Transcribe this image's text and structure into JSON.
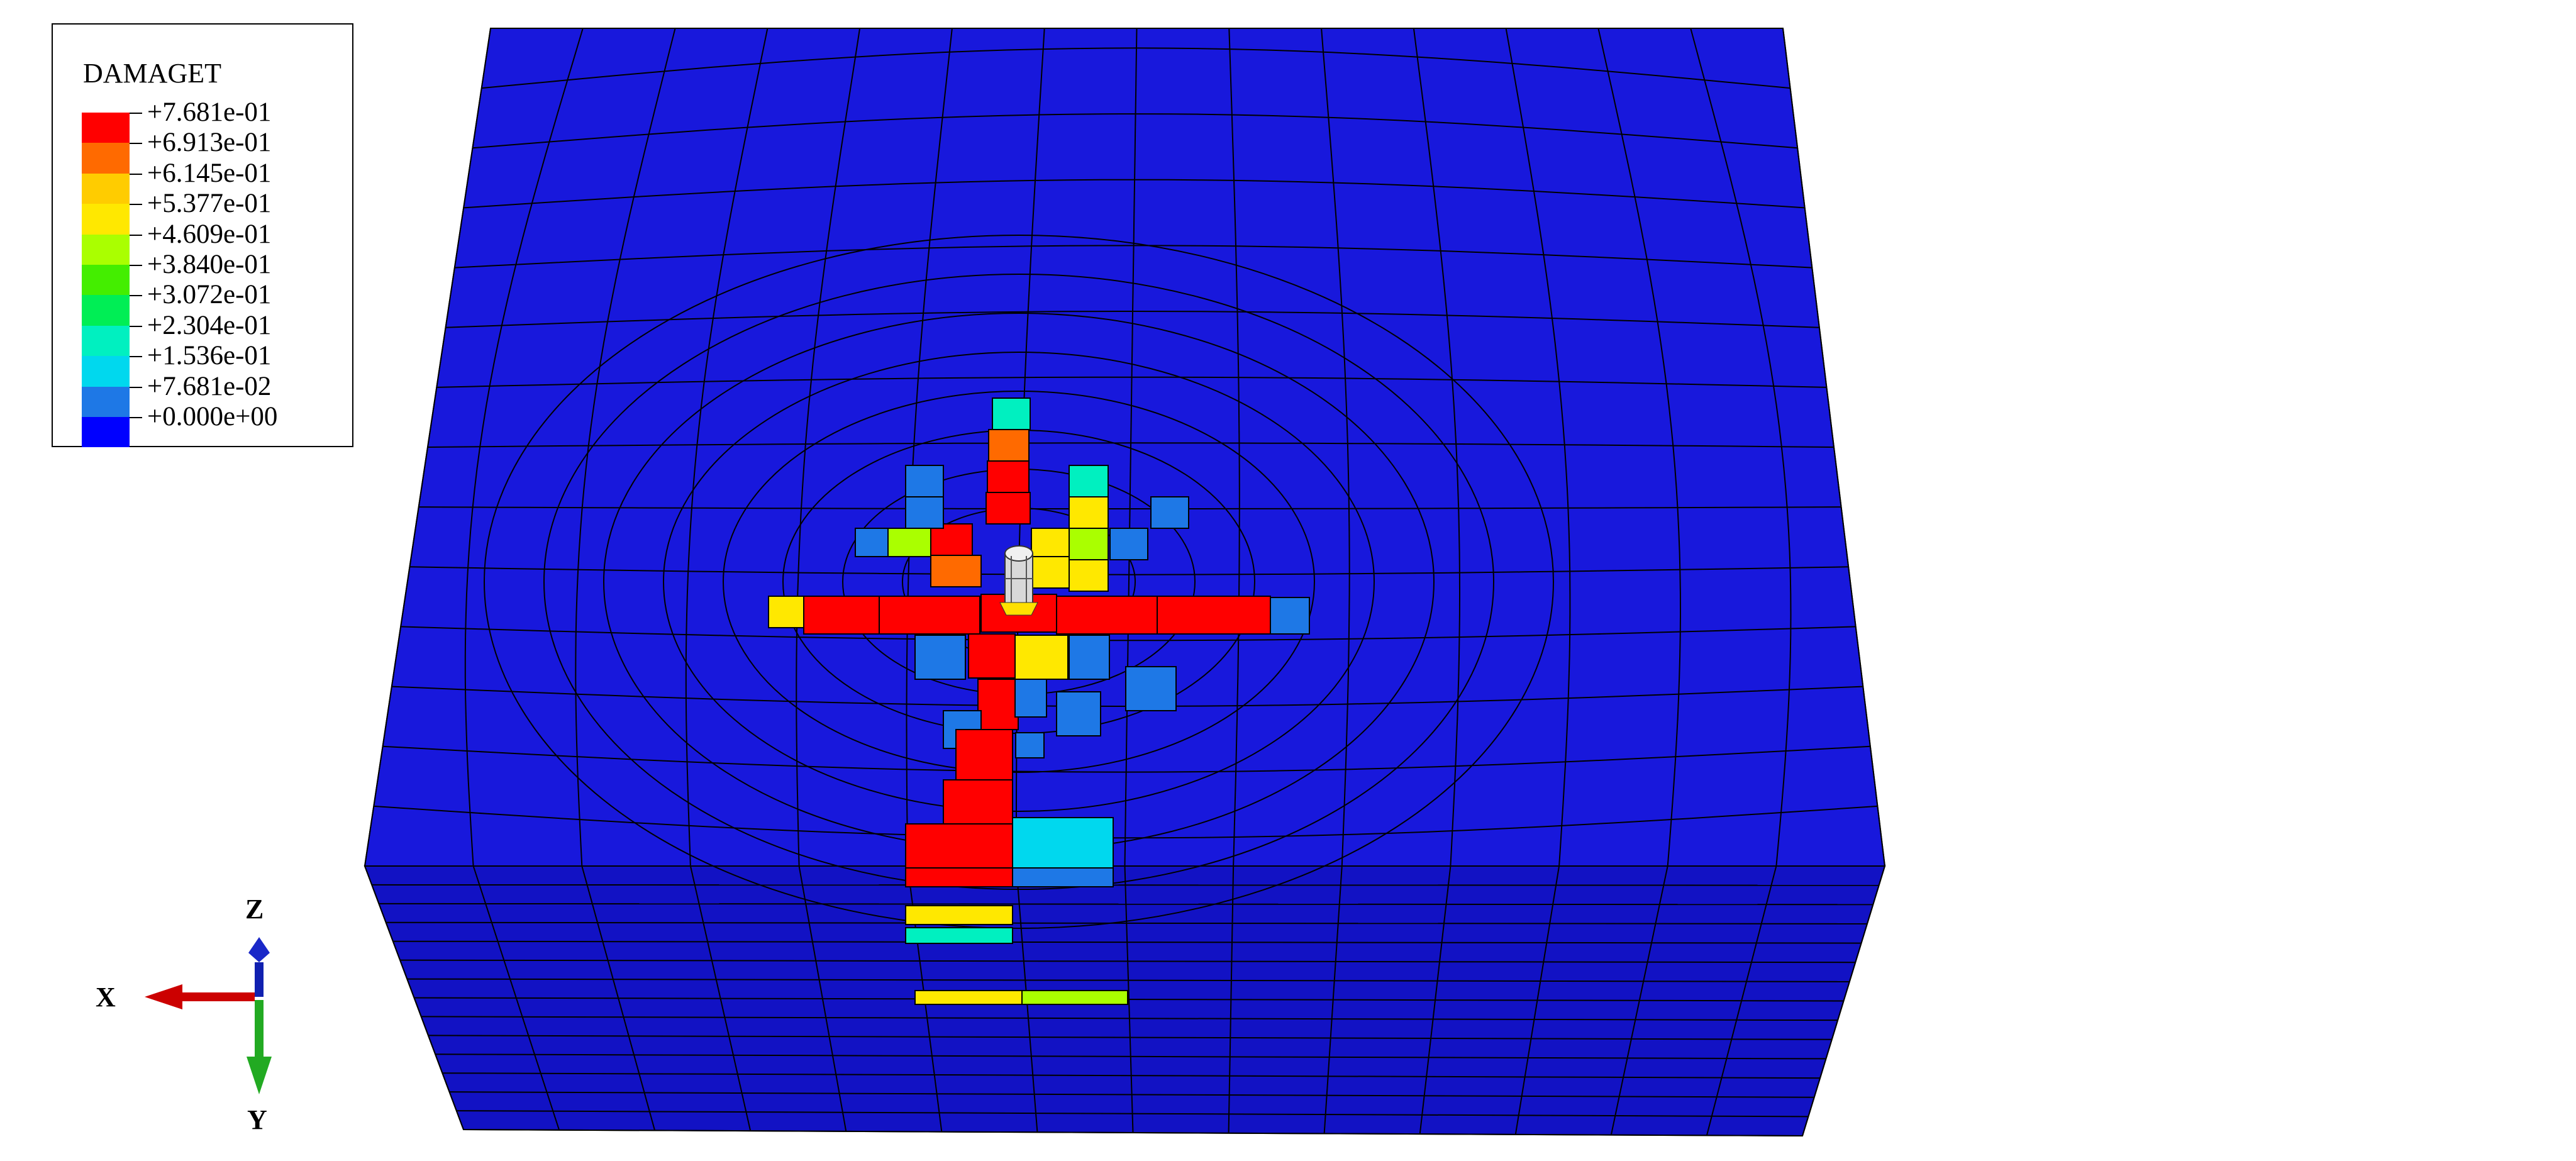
{
  "legend": {
    "title": "DAMAGET",
    "entries": [
      {
        "label": "+7.681e-01",
        "color": "#ff0000"
      },
      {
        "label": "+6.913e-01",
        "color": "#ff6a00"
      },
      {
        "label": "+6.145e-01",
        "color": "#ffcc00"
      },
      {
        "label": "+5.377e-01",
        "color": "#ffe800"
      },
      {
        "label": "+4.609e-01",
        "color": "#aaff00"
      },
      {
        "label": "+3.840e-01",
        "color": "#44ee00"
      },
      {
        "label": "+3.072e-01",
        "color": "#00ee55"
      },
      {
        "label": "+2.304e-01",
        "color": "#00f0c0"
      },
      {
        "label": "+1.536e-01",
        "color": "#00d8ee"
      },
      {
        "label": "+7.681e-02",
        "color": "#1e78e6"
      },
      {
        "label": "+0.000e+00",
        "color": "#0000ff"
      }
    ]
  },
  "triad": {
    "z_label": "Z",
    "x_label": "X",
    "y_label": "Y",
    "z_color": "#1020b0",
    "x_color": "#cc0000",
    "y_color": "#22aa22"
  },
  "model": {
    "base_color": "#1414d8",
    "side_color": "#1010c0",
    "mesh_line_color": "#000000"
  }
}
